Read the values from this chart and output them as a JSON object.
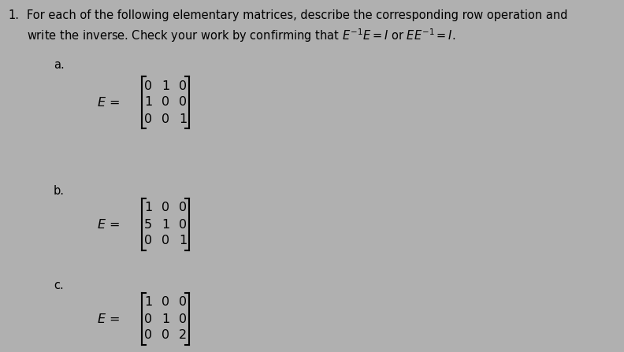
{
  "bg_color": "#b0b0b0",
  "text_color": "#000000",
  "figsize": [
    7.92,
    4.47
  ],
  "dpi": 100,
  "title_line1": "For each of the following elementary matrices, describe the corresponding row operation and",
  "title_line2": "write the inverse. Check your work by confirming that $E^{-1}E = I$ or $EE^{-1} = I$.",
  "item_number": "1.",
  "label_a": "a.",
  "label_b": "b.",
  "label_c": "c.",
  "matrix_a": [
    [
      0,
      1,
      0
    ],
    [
      1,
      0,
      0
    ],
    [
      0,
      0,
      1
    ]
  ],
  "matrix_b": [
    [
      1,
      0,
      0
    ],
    [
      5,
      1,
      0
    ],
    [
      0,
      0,
      1
    ]
  ],
  "matrix_c": [
    [
      1,
      0,
      0
    ],
    [
      0,
      1,
      0
    ],
    [
      0,
      0,
      2
    ]
  ],
  "font_size_text": 10.5,
  "font_size_matrix": 11.5,
  "font_size_label": 10.5
}
